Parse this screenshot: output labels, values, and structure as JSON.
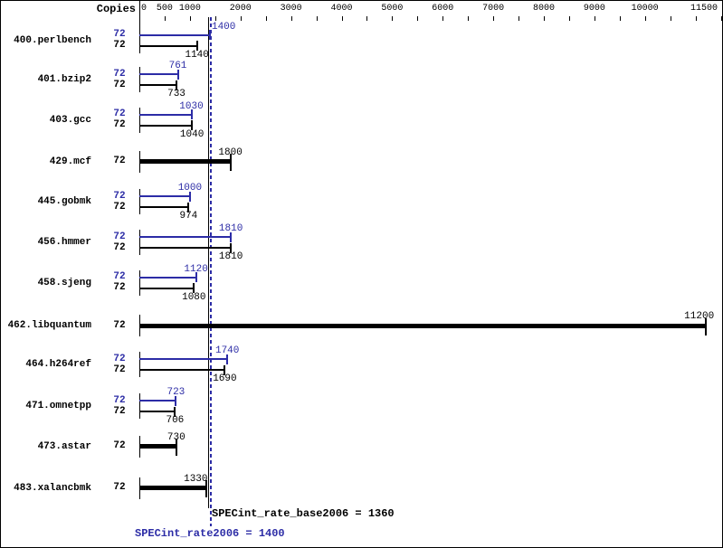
{
  "header": {
    "copies_label": "Copies"
  },
  "colors": {
    "peak_blue": "#2c2ca6",
    "base_black": "#000000"
  },
  "chart_data": {
    "type": "bar",
    "orientation": "horizontal",
    "xlabel": "",
    "ylabel": "Copies",
    "xlim": [
      0,
      11500
    ],
    "grid": false,
    "axis": {
      "tick_step": 500,
      "max": 11500,
      "labels": [
        "0",
        "500",
        "1000",
        "2000",
        "3000",
        "4000",
        "5000",
        "6000",
        "7000",
        "8000",
        "9000",
        "10000",
        "11500"
      ],
      "label_values": [
        0,
        500,
        1000,
        2000,
        3000,
        4000,
        5000,
        6000,
        7000,
        8000,
        9000,
        10000,
        11500
      ]
    },
    "benchmarks": [
      {
        "name": "400.perlbench",
        "rows": [
          {
            "kind": "peak",
            "copies": "72",
            "value": 1400,
            "label": "1400",
            "label_dx": 15
          },
          {
            "kind": "base",
            "copies": "72",
            "value": 1140,
            "label": "1140"
          }
        ]
      },
      {
        "name": "401.bzip2",
        "rows": [
          {
            "kind": "peak",
            "copies": "72",
            "value": 761,
            "label": "761"
          },
          {
            "kind": "base",
            "copies": "72",
            "value": 733,
            "label": "733"
          }
        ]
      },
      {
        "name": "403.gcc",
        "rows": [
          {
            "kind": "peak",
            "copies": "72",
            "value": 1030,
            "label": "1030"
          },
          {
            "kind": "base",
            "copies": "72",
            "value": 1040,
            "label": "1040"
          }
        ]
      },
      {
        "name": "429.mcf",
        "rows": [
          {
            "kind": "single",
            "copies": "72",
            "value": 1800,
            "label": "1800"
          }
        ]
      },
      {
        "name": "445.gobmk",
        "rows": [
          {
            "kind": "peak",
            "copies": "72",
            "value": 1000,
            "label": "1000"
          },
          {
            "kind": "base",
            "copies": "72",
            "value": 974,
            "label": "974"
          }
        ]
      },
      {
        "name": "456.hmmer",
        "rows": [
          {
            "kind": "peak",
            "copies": "72",
            "value": 1810,
            "label": "1810"
          },
          {
            "kind": "base",
            "copies": "72",
            "value": 1810,
            "label": "1810"
          }
        ]
      },
      {
        "name": "458.sjeng",
        "rows": [
          {
            "kind": "peak",
            "copies": "72",
            "value": 1120,
            "label": "1120"
          },
          {
            "kind": "base",
            "copies": "72",
            "value": 1080,
            "label": "1080"
          }
        ]
      },
      {
        "name": "462.libquantum",
        "rows": [
          {
            "kind": "single",
            "copies": "72",
            "value": 11200,
            "label": "11200",
            "label_dx": -7
          }
        ]
      },
      {
        "name": "464.h264ref",
        "rows": [
          {
            "kind": "peak",
            "copies": "72",
            "value": 1740,
            "label": "1740"
          },
          {
            "kind": "base",
            "copies": "72",
            "value": 1690,
            "label": "1690"
          }
        ]
      },
      {
        "name": "471.omnetpp",
        "rows": [
          {
            "kind": "peak",
            "copies": "72",
            "value": 723,
            "label": "723"
          },
          {
            "kind": "base",
            "copies": "72",
            "value": 706,
            "label": "706"
          }
        ]
      },
      {
        "name": "473.astar",
        "rows": [
          {
            "kind": "single",
            "copies": "72",
            "value": 730,
            "label": "730"
          }
        ]
      },
      {
        "name": "483.xalancbmk",
        "rows": [
          {
            "kind": "single",
            "copies": "72",
            "value": 1330,
            "label": "1330",
            "label_dx": -12
          }
        ]
      }
    ],
    "summary": {
      "base_value": 1360,
      "peak_value": 1400,
      "base_text": "SPECint_rate_base2006 = 1360",
      "peak_text": "SPECint_rate2006 = 1400"
    }
  }
}
